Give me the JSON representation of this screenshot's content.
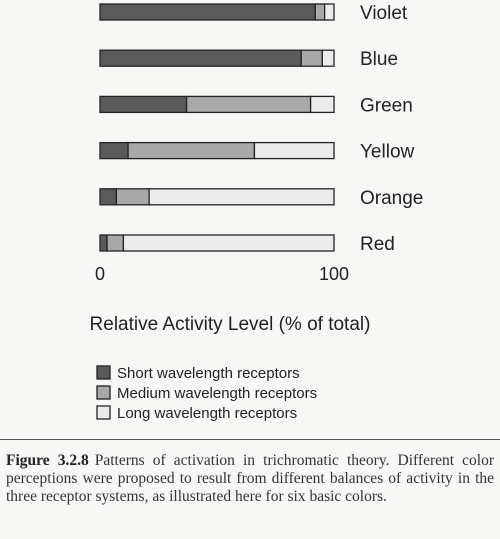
{
  "chart_data": {
    "type": "bar",
    "stacked": true,
    "orientation": "horizontal",
    "categories": [
      "Violet",
      "Blue",
      "Green",
      "Yellow",
      "Orange",
      "Red"
    ],
    "series": [
      {
        "name": "Short wavelength receptors",
        "values": [
          92,
          86,
          37,
          12,
          7,
          3
        ],
        "color": "#5a5a5a"
      },
      {
        "name": "Medium wavelength receptors",
        "values": [
          4,
          9,
          53,
          54,
          14,
          7
        ],
        "color": "#a9a9a9"
      },
      {
        "name": "Long wavelength receptors",
        "values": [
          4,
          5,
          10,
          34,
          79,
          90
        ],
        "color": "#ececec"
      }
    ],
    "xlabel": "Relative Activity Level (% of total)",
    "xlim": [
      0,
      100
    ],
    "xticks": [
      "0",
      "100"
    ],
    "legend_position": "bottom"
  },
  "caption": {
    "label": "Figure 3.2.8",
    "text": "Patterns of activation in trichromatic theory. Different color perceptions were proposed to result from different balances of activity in the three receptor systems, as illustrated here for six basic colors."
  }
}
